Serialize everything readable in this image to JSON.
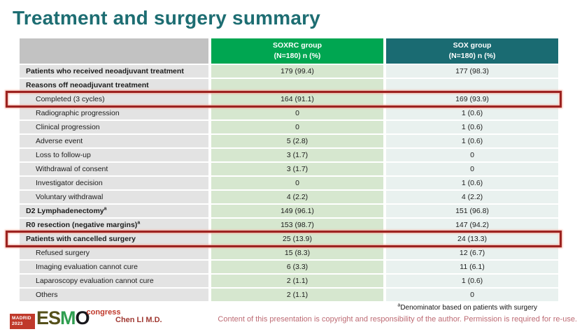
{
  "page": {
    "title": "Treatment and surgery summary"
  },
  "colors": {
    "title_teal": "#1d6d72",
    "soxrc_header_green": "#00a651",
    "sox_header_teal": "#1a6b72",
    "label_header_gray": "#c2c2c2",
    "label_cell_gray": "#e3e3e3",
    "soxrc_cell_green": "#d6e7cf",
    "sox_cell_blue": "#e9f1ef",
    "highlight_box_red": "#9c2220",
    "author_red": "#a03a33",
    "copyright_rose": "#bd6a73",
    "logo_red": "#c0392b"
  },
  "table": {
    "header": {
      "label_col": "",
      "soxrc": {
        "name": "SOXRC group",
        "sub": "(N=180)  n (%)"
      },
      "sox": {
        "name": "SOX group",
        "sub": "(N=180)  n (%)"
      }
    },
    "rows": [
      {
        "label": "Patients who received neoadjuvant treatment",
        "bold": true,
        "indent": false,
        "soxrc": "179 (99.4)",
        "sox": "177 (98.3)",
        "boxed": false
      },
      {
        "label": "Reasons off neoadjuvant treatment",
        "bold": true,
        "indent": false,
        "soxrc": "",
        "sox": "",
        "boxed": false
      },
      {
        "label": "Completed (3 cycles)",
        "bold": false,
        "indent": true,
        "soxrc": "164 (91.1)",
        "sox": "169 (93.9)",
        "boxed": true
      },
      {
        "label": "Radiographic progression",
        "bold": false,
        "indent": true,
        "soxrc": "0",
        "sox": "1 (0.6)",
        "boxed": false
      },
      {
        "label": "Clinical progression",
        "bold": false,
        "indent": true,
        "soxrc": "0",
        "sox": "1 (0.6)",
        "boxed": false
      },
      {
        "label": "Adverse event",
        "bold": false,
        "indent": true,
        "soxrc": "5 (2.8)",
        "sox": "1 (0.6)",
        "boxed": false
      },
      {
        "label": "Loss to follow-up",
        "bold": false,
        "indent": true,
        "soxrc": "3 (1.7)",
        "sox": "0",
        "boxed": false
      },
      {
        "label": "Withdrawal of consent",
        "bold": false,
        "indent": true,
        "soxrc": "3 (1.7)",
        "sox": "0",
        "boxed": false
      },
      {
        "label": "Investigator decision",
        "bold": false,
        "indent": true,
        "soxrc": "0",
        "sox": "1 (0.6)",
        "boxed": false
      },
      {
        "label": "Voluntary withdrawal",
        "bold": false,
        "indent": true,
        "soxrc": "4 (2.2)",
        "sox": "4 (2.2)",
        "boxed": false
      },
      {
        "label": "D2 Lymphadenectomy",
        "sup": "a",
        "bold": true,
        "indent": false,
        "soxrc": "149 (96.1)",
        "sox": "151 (96.8)",
        "boxed": false
      },
      {
        "label": "R0 resection (negative margins)",
        "sup": "a",
        "bold": true,
        "indent": false,
        "soxrc": "153 (98.7)",
        "sox": "147 (94.2)",
        "boxed": false
      },
      {
        "label": "Patients with cancelled surgery",
        "bold": true,
        "indent": false,
        "soxrc": "25 (13.9)",
        "sox": "24 (13.3)",
        "boxed": true
      },
      {
        "label": "Refused surgery",
        "bold": false,
        "indent": true,
        "soxrc": "15 (8.3)",
        "sox": "12 (6.7)",
        "boxed": false
      },
      {
        "label": "Imaging evaluation cannot cure",
        "bold": false,
        "indent": true,
        "soxrc": "6 (3.3)",
        "sox": "11 (6.1)",
        "boxed": false
      },
      {
        "label": "Laparoscopy evaluation cannot cure",
        "bold": false,
        "indent": true,
        "soxrc": "2 (1.1)",
        "sox": "1 (0.6)",
        "boxed": false
      },
      {
        "label": "Others",
        "bold": false,
        "indent": true,
        "soxrc": "2 (1.1)",
        "sox": "0",
        "boxed": false
      }
    ]
  },
  "footer": {
    "logo": {
      "madrid": "MADRID",
      "year": "2023",
      "es": "ES",
      "m": "M",
      "o": "O",
      "congress": "congress"
    },
    "author": "Chen LI M.D.",
    "footnote_sup": "a",
    "footnote": "Denominator based on patients with surgery",
    "copyright": "Content of this presentation is copyright and responsibility of the author. Permission is required for re-use."
  }
}
